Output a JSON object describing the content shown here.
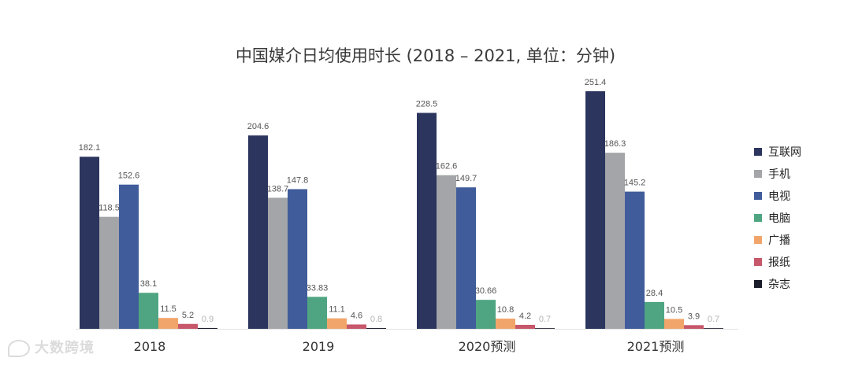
{
  "chart_data": {
    "type": "bar",
    "title": "中国媒介日均使用时长 (2018 – 2021, 单位：分钟)",
    "categories": [
      "2018",
      "2019",
      "2020预测",
      "2021预测"
    ],
    "series": [
      {
        "name": "互联网",
        "color": "#2b355e",
        "values": [
          182.1,
          204.6,
          228.5,
          251.4
        ],
        "labels": [
          "182.1",
          "204.6",
          "228.5",
          "251.4"
        ]
      },
      {
        "name": "手机",
        "color": "#a3a5a8",
        "values": [
          118.5,
          138.7,
          162.6,
          186.3
        ],
        "labels": [
          "118.5",
          "138.7",
          "162.6",
          "186.3"
        ]
      },
      {
        "name": "电视",
        "color": "#405c9b",
        "values": [
          152.6,
          147.8,
          149.7,
          145.2
        ],
        "labels": [
          "152.6",
          "147.8",
          "149.7",
          "145.2"
        ]
      },
      {
        "name": "电脑",
        "color": "#4fa582",
        "values": [
          38.1,
          33.83,
          30.66,
          28.4
        ],
        "labels": [
          "38.1",
          "33.83",
          "30.66",
          "28.4"
        ]
      },
      {
        "name": "广播",
        "color": "#f2a56b",
        "values": [
          11.5,
          11.1,
          10.8,
          10.5
        ],
        "labels": [
          "11.5",
          "11.1",
          "10.8",
          "10.5"
        ]
      },
      {
        "name": "报纸",
        "color": "#c7576a",
        "values": [
          5.2,
          4.6,
          4.2,
          3.9
        ],
        "labels": [
          "5.2",
          "4.6",
          "4.2",
          "3.9"
        ]
      },
      {
        "name": "杂志",
        "color": "#1b1d2a",
        "values": [
          0.9,
          0.8,
          0.7,
          0.7
        ],
        "labels": [
          "0.9",
          "0.8",
          "0.7",
          "0.7"
        ]
      }
    ],
    "ylim": [
      0,
      260
    ],
    "grid": false,
    "legend_position": "right"
  },
  "watermark": {
    "text": "大数跨境"
  }
}
